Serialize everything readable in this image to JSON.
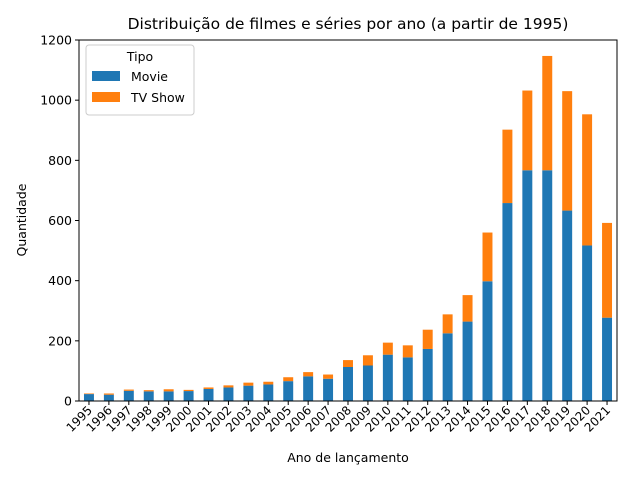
{
  "chart_data": {
    "type": "bar",
    "stacked": true,
    "title": "Distribuição de filmes e séries por ano (a partir de 1995)",
    "xlabel": "Ano de lançamento",
    "ylabel": "Quantidade",
    "ylim": [
      0,
      1200
    ],
    "yticks": [
      0,
      200,
      400,
      600,
      800,
      1000,
      1200
    ],
    "grid": false,
    "legend": {
      "title": "Tipo",
      "placement": "top-left"
    },
    "categories": [
      "1995",
      "1996",
      "1997",
      "1998",
      "1999",
      "2000",
      "2001",
      "2002",
      "2003",
      "2004",
      "2005",
      "2006",
      "2007",
      "2008",
      "2009",
      "2010",
      "2011",
      "2012",
      "2013",
      "2014",
      "2015",
      "2016",
      "2017",
      "2018",
      "2019",
      "2020",
      "2021"
    ],
    "series": [
      {
        "name": "Movie",
        "color": "#1f77b4",
        "values": [
          23,
          21,
          34,
          32,
          32,
          33,
          40,
          45,
          51,
          55,
          66,
          82,
          74,
          113,
          118,
          154,
          145,
          173,
          225,
          264,
          398,
          658,
          767,
          767,
          633,
          517,
          277
        ]
      },
      {
        "name": "TV Show",
        "color": "#ff7f0e",
        "values": [
          2,
          4,
          4,
          4,
          7,
          4,
          5,
          7,
          10,
          9,
          13,
          14,
          14,
          23,
          34,
          40,
          40,
          64,
          63,
          88,
          162,
          244,
          265,
          380,
          397,
          436,
          315
        ]
      }
    ]
  }
}
